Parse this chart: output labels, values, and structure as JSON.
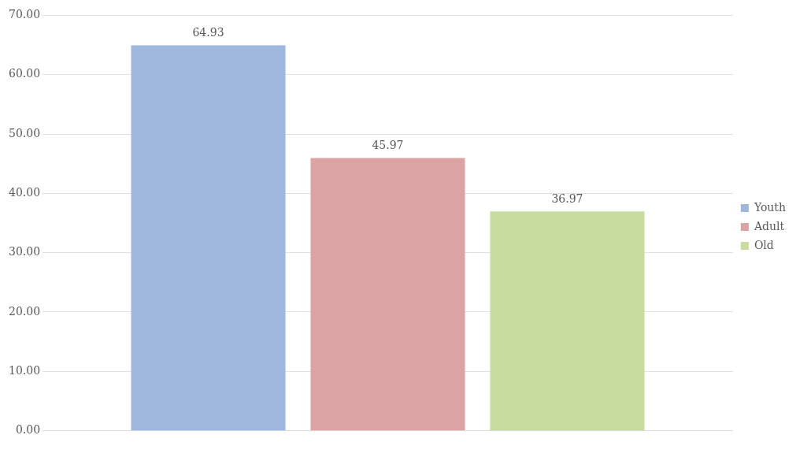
{
  "chart_data": {
    "type": "bar",
    "categories": [
      null
    ],
    "series": [
      {
        "name": "Youth",
        "color": "#9fb6dd",
        "values": [
          64.93
        ]
      },
      {
        "name": "Adult",
        "color": "#dba3a3",
        "values": [
          45.97
        ]
      },
      {
        "name": "Old",
        "color": "#c8dca0",
        "values": [
          36.97
        ]
      }
    ],
    "ylim": [
      0,
      70
    ],
    "yticks": [
      {
        "value": 0,
        "label": "0.00"
      },
      {
        "value": 10,
        "label": "10.00"
      },
      {
        "value": 20,
        "label": "20.00"
      },
      {
        "value": 30,
        "label": "30.00"
      },
      {
        "value": 40,
        "label": "40.00"
      },
      {
        "value": 50,
        "label": "50.00"
      },
      {
        "value": 60,
        "label": "60.00"
      },
      {
        "value": 70,
        "label": "70.00"
      }
    ],
    "grid": "y",
    "legend": "right",
    "data_labels": true
  }
}
